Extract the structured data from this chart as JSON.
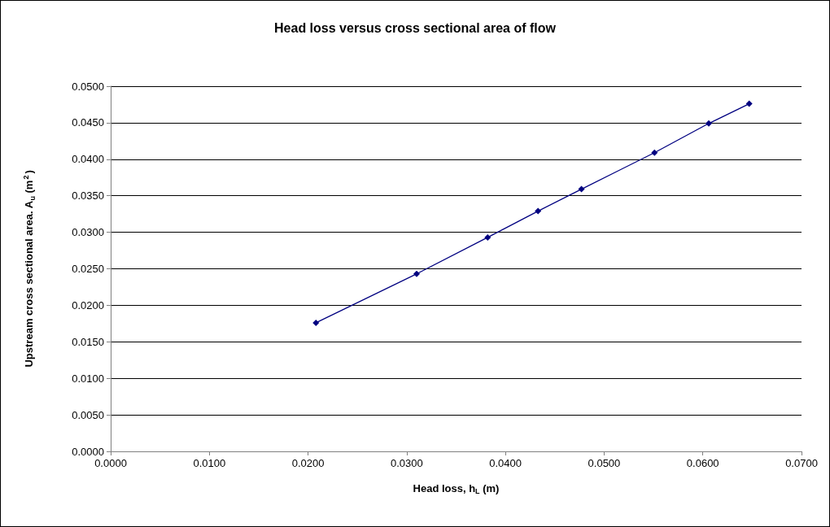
{
  "chart_data": {
    "type": "line",
    "title": "Head loss versus cross sectional area of flow",
    "xlabel": "Head loss, h$_{L}$ (m)",
    "ylabel": "Upstream cross sectional area. A$_{u}$ (m$^{2}$)",
    "x": [
      0.0208,
      0.031,
      0.0382,
      0.0433,
      0.0477,
      0.0551,
      0.0606,
      0.0647
    ],
    "series": [
      {
        "color": "#000080",
        "values": [
          0.0176,
          0.0243,
          0.0293,
          0.0329,
          0.0359,
          0.0409,
          0.0449,
          0.0476
        ]
      }
    ],
    "xlim": [
      0,
      0.07
    ],
    "xticks": [
      {
        "value": 0,
        "label": "0.0000"
      },
      {
        "value": 0.01,
        "label": "0.0100"
      },
      {
        "value": 0.02,
        "label": "0.0200"
      },
      {
        "value": 0.03,
        "label": "0.0300"
      },
      {
        "value": 0.04,
        "label": "0.0400"
      },
      {
        "value": 0.05,
        "label": "0.0500"
      },
      {
        "value": 0.06,
        "label": "0.0600"
      },
      {
        "value": 0.07,
        "label": "0.0700"
      }
    ],
    "ylim": [
      0,
      0.05
    ],
    "yticks": [
      {
        "value": 0,
        "label": "0.0000"
      },
      {
        "value": 0.005,
        "label": "0.0050"
      },
      {
        "value": 0.01,
        "label": "0.0100"
      },
      {
        "value": 0.015,
        "label": "0.0150"
      },
      {
        "value": 0.02,
        "label": "0.0200"
      },
      {
        "value": 0.025,
        "label": "0.0250"
      },
      {
        "value": 0.03,
        "label": "0.0300"
      },
      {
        "value": 0.035,
        "label": "0.0350"
      },
      {
        "value": 0.04,
        "label": "0.0400"
      },
      {
        "value": 0.045,
        "label": "0.0450"
      },
      {
        "value": 0.05,
        "label": "0.0500"
      }
    ],
    "grid": "y",
    "marker": "diamond",
    "line_style": "solid"
  }
}
